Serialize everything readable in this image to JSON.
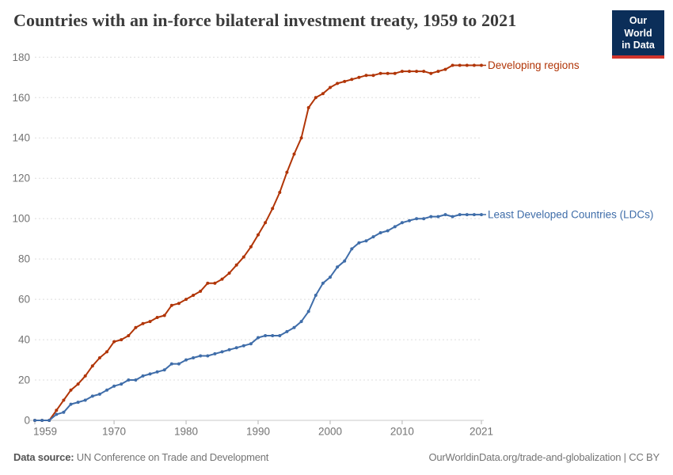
{
  "header": {
    "title": "Countries with an in-force bilateral investment treaty, 1959 to 2021"
  },
  "logo": {
    "line1": "Our World",
    "line2": "in Data",
    "bg_color": "#0b2e59",
    "accent_color": "#d0342c"
  },
  "chart_data": {
    "type": "line",
    "title": "Countries with an in-force bilateral investment treaty, 1959 to 2021",
    "xlabel": "",
    "ylabel": "",
    "ylim": [
      0,
      180
    ],
    "yticks": [
      0,
      20,
      40,
      60,
      80,
      100,
      120,
      140,
      160,
      180
    ],
    "xticks": [
      1959,
      1970,
      1980,
      1990,
      2000,
      2010,
      2021
    ],
    "grid": "dashed-horizontal",
    "legend_position": "end-of-line",
    "x": [
      1959,
      1960,
      1961,
      1962,
      1963,
      1964,
      1965,
      1966,
      1967,
      1968,
      1969,
      1970,
      1971,
      1972,
      1973,
      1974,
      1975,
      1976,
      1977,
      1978,
      1979,
      1980,
      1981,
      1982,
      1983,
      1984,
      1985,
      1986,
      1987,
      1988,
      1989,
      1990,
      1991,
      1992,
      1993,
      1994,
      1995,
      1996,
      1997,
      1998,
      1999,
      2000,
      2001,
      2002,
      2003,
      2004,
      2005,
      2006,
      2007,
      2008,
      2009,
      2010,
      2011,
      2012,
      2013,
      2014,
      2015,
      2016,
      2017,
      2018,
      2019,
      2020,
      2021
    ],
    "series": [
      {
        "name": "Developing regions",
        "color": "#b13507",
        "values": [
          0,
          0,
          0,
          5,
          10,
          15,
          18,
          22,
          27,
          31,
          34,
          39,
          40,
          42,
          46,
          48,
          49,
          51,
          52,
          57,
          58,
          60,
          62,
          64,
          68,
          68,
          70,
          73,
          77,
          81,
          86,
          92,
          98,
          105,
          113,
          123,
          132,
          140,
          155,
          160,
          162,
          165,
          167,
          168,
          169,
          170,
          171,
          171,
          172,
          172,
          172,
          173,
          173,
          173,
          173,
          172,
          173,
          174,
          176,
          176,
          176,
          176,
          176
        ]
      },
      {
        "name": "Least Developed Countries (LDCs)",
        "color": "#3f6da9",
        "values": [
          0,
          0,
          0,
          3,
          4,
          8,
          9,
          10,
          12,
          13,
          15,
          17,
          18,
          20,
          20,
          22,
          23,
          24,
          25,
          28,
          28,
          30,
          31,
          32,
          32,
          33,
          34,
          35,
          36,
          37,
          38,
          41,
          42,
          42,
          42,
          44,
          46,
          49,
          54,
          62,
          68,
          71,
          76,
          79,
          85,
          88,
          89,
          91,
          93,
          94,
          96,
          98,
          99,
          100,
          100,
          101,
          101,
          102,
          101,
          102,
          102,
          102,
          102
        ]
      }
    ]
  },
  "axis_colors": {
    "tick_label": "#737373",
    "gridline": "#dedede",
    "axis_line": "#c9c9c9",
    "tick_mark": "#b3b3b3"
  },
  "footer": {
    "source_label": "Data source:",
    "source_text": " UN Conference on Trade and Development",
    "attribution": "OurWorldinData.org/trade-and-globalization | CC BY"
  }
}
